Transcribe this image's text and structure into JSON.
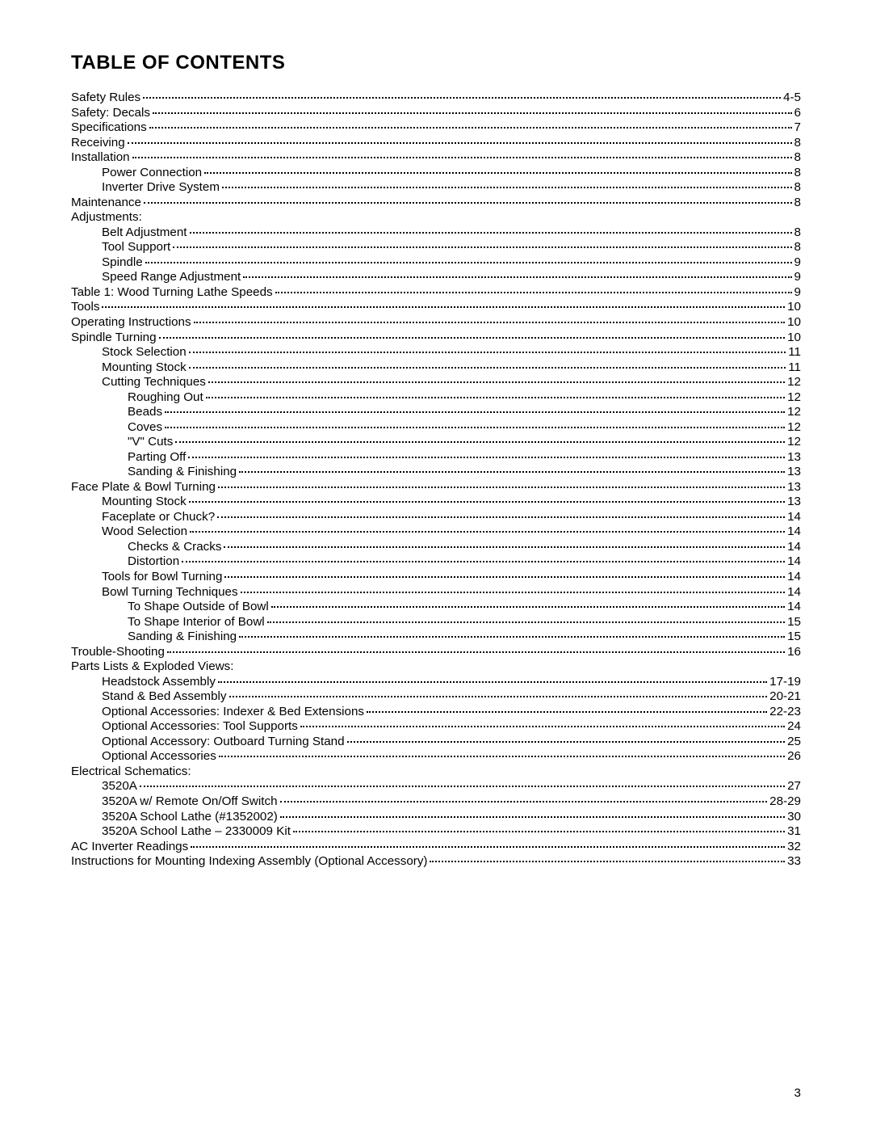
{
  "title": "TABLE OF CONTENTS",
  "pageNumber": "3",
  "entries": [
    {
      "label": "Safety Rules",
      "page": "4-5",
      "indent": 0,
      "dots": true
    },
    {
      "label": "Safety: Decals",
      "page": "6",
      "indent": 0,
      "dots": true
    },
    {
      "label": "Specifications",
      "page": "7",
      "indent": 0,
      "dots": true
    },
    {
      "label": "Receiving",
      "page": "8",
      "indent": 0,
      "dots": true
    },
    {
      "label": "Installation",
      "page": "8",
      "indent": 0,
      "dots": true
    },
    {
      "label": "Power Connection",
      "page": "8",
      "indent": 1,
      "dots": true
    },
    {
      "label": "Inverter Drive System",
      "page": "8",
      "indent": 1,
      "dots": true
    },
    {
      "label": "Maintenance",
      "page": "8",
      "indent": 0,
      "dots": true
    },
    {
      "label": "Adjustments:",
      "page": "",
      "indent": 0,
      "dots": false
    },
    {
      "label": "Belt Adjustment",
      "page": "8",
      "indent": 1,
      "dots": true
    },
    {
      "label": "Tool Support",
      "page": "8",
      "indent": 1,
      "dots": true
    },
    {
      "label": "Spindle",
      "page": "9",
      "indent": 1,
      "dots": true
    },
    {
      "label": "Speed Range Adjustment",
      "page": "9",
      "indent": 1,
      "dots": true
    },
    {
      "label": "Table 1: Wood Turning Lathe Speeds",
      "page": "9",
      "indent": 0,
      "dots": true
    },
    {
      "label": "Tools",
      "page": "10",
      "indent": 0,
      "dots": true
    },
    {
      "label": "Operating Instructions",
      "page": "10",
      "indent": 0,
      "dots": true
    },
    {
      "label": "Spindle Turning",
      "page": "10",
      "indent": 0,
      "dots": true
    },
    {
      "label": "Stock Selection",
      "page": "11",
      "indent": 1,
      "dots": true
    },
    {
      "label": "Mounting Stock",
      "page": "11",
      "indent": 1,
      "dots": true
    },
    {
      "label": "Cutting Techniques",
      "page": "12",
      "indent": 1,
      "dots": true
    },
    {
      "label": "Roughing Out",
      "page": "12",
      "indent": 2,
      "dots": true
    },
    {
      "label": "Beads",
      "page": "12",
      "indent": 2,
      "dots": true
    },
    {
      "label": "Coves",
      "page": "12",
      "indent": 2,
      "dots": true
    },
    {
      "label": "\"V\" Cuts",
      "page": "12",
      "indent": 2,
      "dots": true
    },
    {
      "label": "Parting Off",
      "page": "13",
      "indent": 2,
      "dots": true
    },
    {
      "label": "Sanding & Finishing",
      "page": "13",
      "indent": 2,
      "dots": true
    },
    {
      "label": "Face Plate & Bowl Turning",
      "page": "13",
      "indent": 0,
      "dots": true
    },
    {
      "label": "Mounting Stock",
      "page": "13",
      "indent": 1,
      "dots": true
    },
    {
      "label": "Faceplate or Chuck?",
      "page": "14",
      "indent": 1,
      "dots": true
    },
    {
      "label": "Wood Selection",
      "page": "14",
      "indent": 1,
      "dots": true
    },
    {
      "label": "Checks & Cracks",
      "page": "14",
      "indent": 2,
      "dots": true
    },
    {
      "label": "Distortion",
      "page": "14",
      "indent": 2,
      "dots": true
    },
    {
      "label": "Tools for Bowl Turning",
      "page": "14",
      "indent": 1,
      "dots": true
    },
    {
      "label": "Bowl Turning Techniques",
      "page": "14",
      "indent": 1,
      "dots": true
    },
    {
      "label": "To Shape Outside of Bowl",
      "page": "14",
      "indent": 2,
      "dots": true
    },
    {
      "label": "To Shape Interior of Bowl",
      "page": "15",
      "indent": 2,
      "dots": true
    },
    {
      "label": "Sanding & Finishing",
      "page": "15",
      "indent": 2,
      "dots": true
    },
    {
      "label": "Trouble-Shooting",
      "page": "16",
      "indent": 0,
      "dots": true
    },
    {
      "label": "Parts Lists & Exploded Views:",
      "page": "",
      "indent": 0,
      "dots": false
    },
    {
      "label": "Headstock Assembly",
      "page": "17-19",
      "indent": 1,
      "dots": true
    },
    {
      "label": "Stand & Bed Assembly",
      "page": "20-21",
      "indent": 1,
      "dots": true
    },
    {
      "label": "Optional Accessories: Indexer & Bed Extensions",
      "page": "22-23",
      "indent": 1,
      "dots": true
    },
    {
      "label": "Optional Accessories: Tool Supports",
      "page": "24",
      "indent": 1,
      "dots": true
    },
    {
      "label": "Optional Accessory: Outboard Turning Stand",
      "page": "25",
      "indent": 1,
      "dots": true
    },
    {
      "label": "Optional Accessories",
      "page": "26",
      "indent": 1,
      "dots": true
    },
    {
      "label": "Electrical Schematics:",
      "page": "",
      "indent": 0,
      "dots": false
    },
    {
      "label": "3520A",
      "page": "27",
      "indent": 1,
      "dots": true
    },
    {
      "label": "3520A w/ Remote On/Off Switch",
      "page": "28-29",
      "indent": 1,
      "dots": true
    },
    {
      "label": "3520A School Lathe (#1352002)",
      "page": "30",
      "indent": 1,
      "dots": true
    },
    {
      "label": "3520A School Lathe – 2330009 Kit",
      "page": "31",
      "indent": 1,
      "dots": true
    },
    {
      "label": "AC Inverter Readings",
      "page": "32",
      "indent": 0,
      "dots": true
    },
    {
      "label": "Instructions for Mounting Indexing Assembly (Optional Accessory)",
      "page": "33",
      "indent": 0,
      "dots": true
    }
  ]
}
